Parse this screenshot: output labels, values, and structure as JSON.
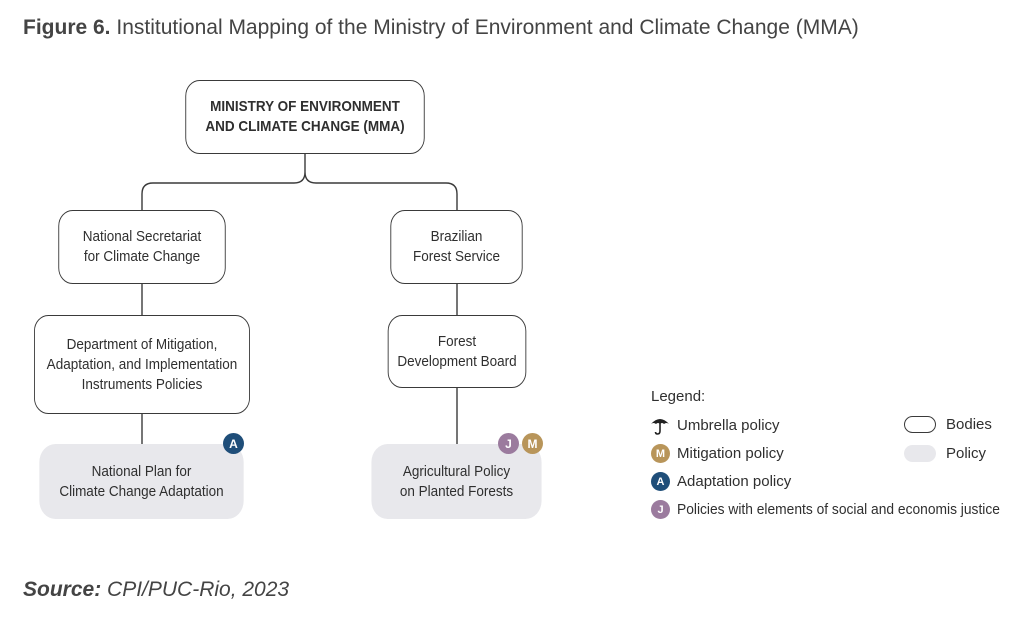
{
  "figure": {
    "number": "Figure 6.",
    "title": "Institutional Mapping of the Ministry of Environment and Climate Change (MMA)"
  },
  "nodes": {
    "ministry": "MINISTRY OF ENVIRONMENT\nAND CLIMATE CHANGE (MMA)",
    "secretariat": "National Secretariat\nfor Climate Change",
    "forest_service": "Brazilian\nForest Service",
    "department": "Department of Mitigation,\nAdaptation, and Implementation\nInstruments Policies",
    "forest_board": "Forest\nDevelopment Board",
    "plan_adaptation": "National Plan for\nClimate Change Adaptation",
    "agri_policy": "Agricultural Policy\non Planted Forests"
  },
  "badges": {
    "adaptation": "A",
    "mitigation": "M",
    "justice": "J"
  },
  "legend": {
    "title": "Legend:",
    "umbrella": "Umbrella policy",
    "mitigation": "Mitigation policy",
    "adaptation": "Adaptation policy",
    "justice": "Policies with elements of social and economis justice",
    "bodies": "Bodies",
    "policy": "Policy"
  },
  "source": {
    "label": "Source:",
    "text": "CPI/PUC-Rio, 2023"
  },
  "colors": {
    "adaptation": "#1f4e79",
    "mitigation": "#b8955a",
    "justice": "#9b7b9e",
    "policy_fill": "#e8e8ec",
    "border": "#3a3a3a"
  },
  "icons": {
    "umbrella": "umbrella-icon"
  }
}
